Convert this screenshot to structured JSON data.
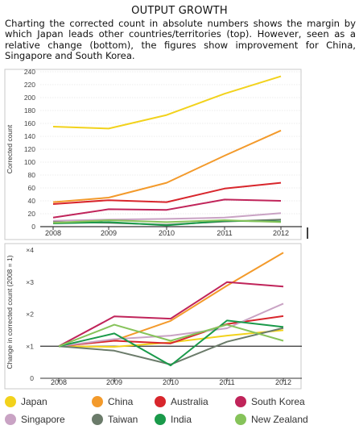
{
  "header": {
    "title": "OUTPUT GROWTH",
    "caption": "Charting the corrected count in absolute numbers shows the margin by which Japan leads other countries/territories (top). However, seen as a relative change (bottom), the figures show improvement for China, Singapore and South Korea."
  },
  "chart_data": [
    {
      "type": "line",
      "panel": "top",
      "x": [
        2008,
        2009,
        2010,
        2011,
        2012
      ],
      "ylabel": "Corrected count",
      "ylim": [
        0,
        240
      ],
      "yticks": [
        0,
        20,
        40,
        60,
        80,
        100,
        120,
        140,
        160,
        180,
        200,
        220,
        240
      ],
      "series": [
        {
          "name": "Japan",
          "color": "#f2d21c",
          "values": [
            155,
            152,
            173,
            206,
            233
          ]
        },
        {
          "name": "China",
          "color": "#f39a2b",
          "values": [
            38,
            45,
            68,
            110,
            149
          ]
        },
        {
          "name": "Australia",
          "color": "#d8262c",
          "values": [
            35,
            41,
            38,
            59,
            68
          ]
        },
        {
          "name": "South Korea",
          "color": "#c0245a",
          "values": [
            14,
            27,
            26,
            42,
            40
          ]
        },
        {
          "name": "Singapore",
          "color": "#c9a3c4",
          "values": [
            9,
            11,
            12,
            14,
            21
          ]
        },
        {
          "name": "Taiwan",
          "color": "#6b7b6a",
          "values": [
            7,
            6,
            3,
            8,
            11
          ]
        },
        {
          "name": "India",
          "color": "#1a9a4a",
          "values": [
            5,
            7,
            2,
            9,
            8
          ]
        },
        {
          "name": "New Zealand",
          "color": "#86c35a",
          "values": [
            6,
            10,
            7,
            10,
            7
          ]
        }
      ]
    },
    {
      "type": "line",
      "panel": "bottom",
      "x": [
        2008,
        2009,
        2010,
        2011,
        2012
      ],
      "ylabel": "Change in corrected count (2008 = 1)",
      "ylim": [
        0,
        4
      ],
      "yticks": [
        0,
        1,
        2,
        3,
        4
      ],
      "ytick_labels": [
        "0",
        "×1",
        "×2",
        "×3",
        "×4"
      ],
      "series": [
        {
          "name": "Japan",
          "color": "#f2d21c",
          "values": [
            1,
            0.98,
            1.12,
            1.33,
            1.5
          ]
        },
        {
          "name": "China",
          "color": "#f39a2b",
          "values": [
            1,
            1.18,
            1.79,
            2.89,
            3.92
          ]
        },
        {
          "name": "Australia",
          "color": "#d8262c",
          "values": [
            1,
            1.17,
            1.09,
            1.69,
            1.94
          ]
        },
        {
          "name": "South Korea",
          "color": "#c0245a",
          "values": [
            1,
            1.93,
            1.86,
            3.0,
            2.86
          ]
        },
        {
          "name": "Singapore",
          "color": "#c9a3c4",
          "values": [
            1,
            1.22,
            1.33,
            1.56,
            2.33
          ]
        },
        {
          "name": "Taiwan",
          "color": "#6b7b6a",
          "values": [
            1,
            0.86,
            0.43,
            1.14,
            1.57
          ]
        },
        {
          "name": "India",
          "color": "#1a9a4a",
          "values": [
            1,
            1.4,
            0.4,
            1.8,
            1.6
          ]
        },
        {
          "name": "New Zealand",
          "color": "#86c35a",
          "values": [
            1,
            1.67,
            1.17,
            1.67,
            1.17
          ]
        }
      ]
    }
  ]
}
